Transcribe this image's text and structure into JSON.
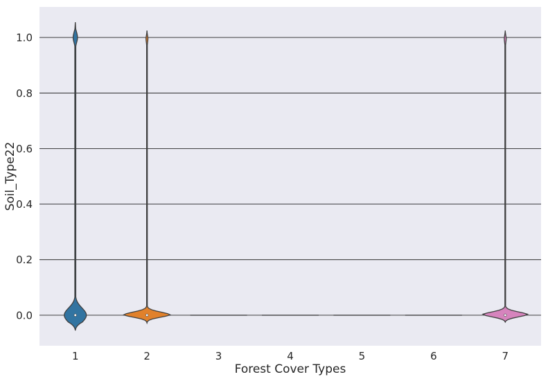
{
  "chart_data": {
    "type": "violin",
    "xlabel": "Forest Cover Types",
    "ylabel": "Soil_Type22",
    "categories": [
      "1",
      "2",
      "3",
      "4",
      "5",
      "6",
      "7"
    ],
    "ylim": [
      -0.11,
      1.11
    ],
    "yticks": [
      0.0,
      0.2,
      0.4,
      0.6,
      0.8,
      1.0
    ],
    "ytick_labels": [
      "0.0",
      "0.2",
      "0.4",
      "0.6",
      "0.8",
      "1.0"
    ],
    "grid": true,
    "background": "#eaeaf2",
    "series": [
      {
        "category": "1",
        "color": "#3274a1",
        "median": 0.0,
        "range": [
          -0.055,
          1.055
        ],
        "upper_mode": 1.0
      },
      {
        "category": "2",
        "color": "#e1812c",
        "median": 0.0,
        "range": [
          -0.028,
          1.025
        ],
        "upper_mode": 1.0
      },
      {
        "category": "3",
        "color": "#3a923a",
        "median": 0.0,
        "range": [
          0.0,
          0.0
        ]
      },
      {
        "category": "4",
        "color": "#c03d3e",
        "median": 0.0,
        "range": [
          0.0,
          0.0
        ]
      },
      {
        "category": "5",
        "color": "#9372b2",
        "median": 0.0,
        "range": [
          0.0,
          0.0
        ]
      },
      {
        "category": "6",
        "color": "#845b53",
        "median": 0.0,
        "range": [
          0.0,
          0.0
        ]
      },
      {
        "category": "7",
        "color": "#d684bd",
        "median": 0.0,
        "range": [
          -0.025,
          1.025
        ],
        "upper_mode": 1.0
      }
    ]
  }
}
